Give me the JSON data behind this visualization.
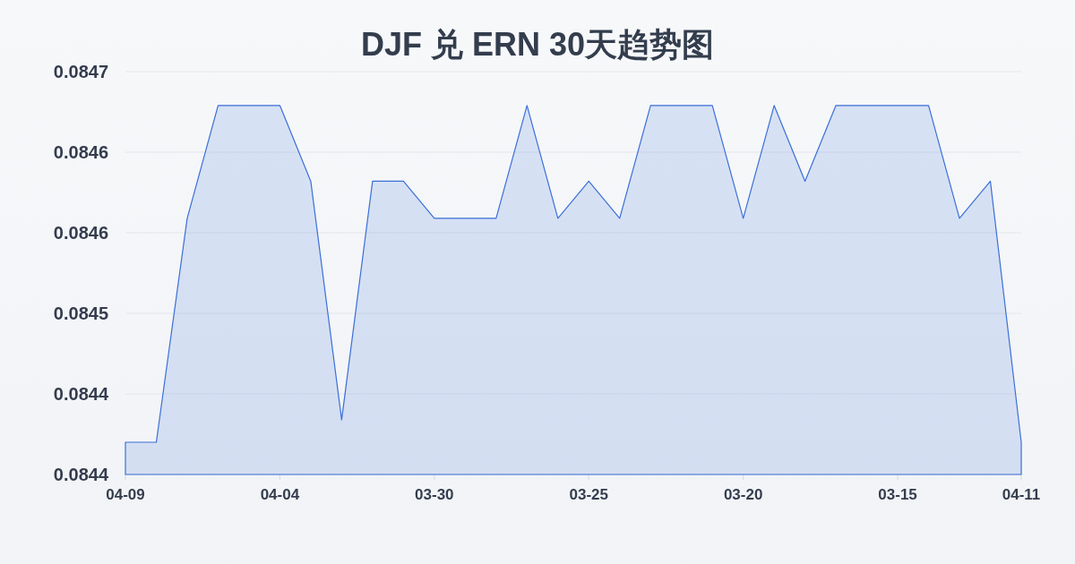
{
  "chart_data": {
    "type": "area",
    "title": "DJF 兑 ERN 30天趋势图",
    "categories": [
      "04-09",
      null,
      null,
      null,
      null,
      "04-04",
      null,
      null,
      null,
      null,
      "03-30",
      null,
      null,
      null,
      null,
      "03-25",
      null,
      null,
      null,
      null,
      "03-20",
      null,
      null,
      null,
      null,
      "03-15",
      null,
      null,
      null,
      "04-11"
    ],
    "values": [
      0.08442,
      0.08442,
      0.084559,
      0.084629,
      0.084629,
      0.084629,
      0.084582,
      0.084434,
      0.084582,
      0.084582,
      0.084559,
      0.084559,
      0.084559,
      0.084629,
      0.084559,
      0.084582,
      0.084559,
      0.084629,
      0.084629,
      0.084629,
      0.084559,
      0.084629,
      0.084582,
      0.084629,
      0.084629,
      0.084629,
      0.084629,
      0.084559,
      0.084582,
      0.08442
    ],
    "color": "#3a6fd8",
    "ylim": [
      0.0844,
      0.08465
    ],
    "yticks": [
      {
        "value": 0.0844,
        "label": "0.0844"
      },
      {
        "value": 0.08445,
        "label": "0.0844"
      },
      {
        "value": 0.0845,
        "label": "0.0845"
      },
      {
        "value": 0.08455,
        "label": "0.0846"
      },
      {
        "value": 0.0846,
        "label": "0.0846"
      },
      {
        "value": 0.08465,
        "label": "0.0847"
      }
    ],
    "grid": "y"
  }
}
